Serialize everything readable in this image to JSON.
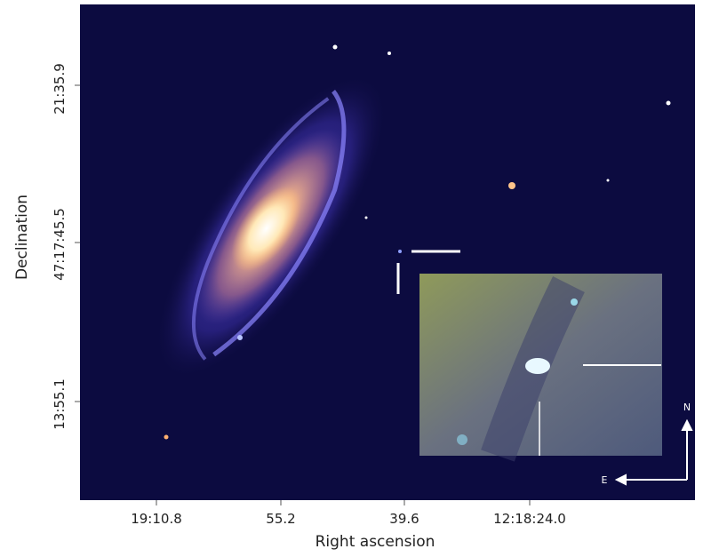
{
  "axes": {
    "x_label": "Right ascension",
    "y_label": "Declination",
    "x_ticks": [
      "19:10.8",
      "55.2",
      "39.6",
      "12:18:24.0"
    ],
    "y_ticks": [
      "21:35.9",
      "47:17:45.5",
      "13:55.1"
    ]
  },
  "compass": {
    "north": "N",
    "east": "E"
  }
}
